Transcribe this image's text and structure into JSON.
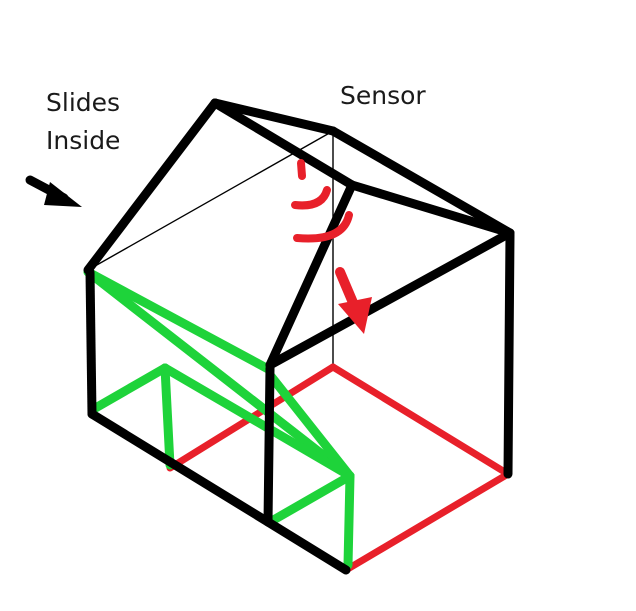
{
  "labels": {
    "slides_line1": "Slides",
    "slides_line2": "Inside",
    "sensor": "Sensor"
  },
  "icons": {
    "slide_arrow": "arrow-right-down-icon",
    "sensor_arrow": "arrow-down-icon",
    "sensor_waves": "signal-waves-icon"
  },
  "colors": {
    "frame": "#000000",
    "slide_frame": "#1ed33a",
    "floor": "#e8202a",
    "sensor": "#e8202a",
    "background": "#ffffff"
  }
}
